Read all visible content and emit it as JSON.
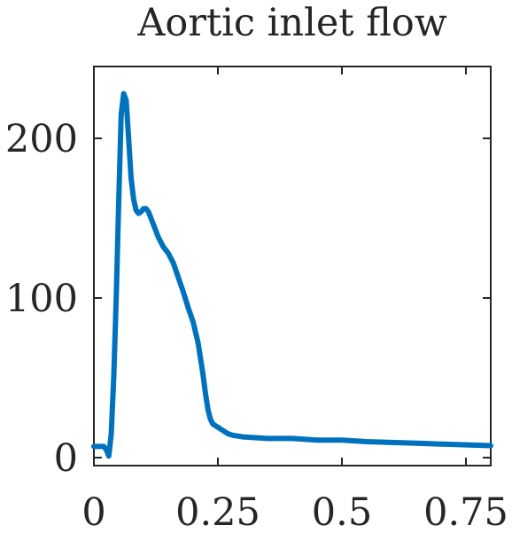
{
  "chart_data": {
    "type": "line",
    "title": "Aortic inlet flow",
    "xlabel": "",
    "ylabel": "",
    "xlim": [
      0,
      0.8
    ],
    "ylim": [
      -5,
      245
    ],
    "xticks": [
      0,
      0.25,
      0.5,
      0.75
    ],
    "xtick_labels": [
      "0",
      "0.25",
      "0.5",
      "0.75"
    ],
    "yticks": [
      0,
      100,
      200
    ],
    "ytick_labels": [
      "0",
      "100",
      "200"
    ],
    "grid": false,
    "series": [
      {
        "name": "",
        "color": "#0072BD",
        "x": [
          0,
          0.02,
          0.025,
          0.03,
          0.035,
          0.04,
          0.045,
          0.05,
          0.055,
          0.06,
          0.065,
          0.07,
          0.075,
          0.08,
          0.085,
          0.09,
          0.095,
          0.1,
          0.105,
          0.11,
          0.115,
          0.12,
          0.13,
          0.14,
          0.15,
          0.16,
          0.17,
          0.18,
          0.19,
          0.2,
          0.21,
          0.22,
          0.225,
          0.23,
          0.235,
          0.24,
          0.245,
          0.25,
          0.26,
          0.27,
          0.28,
          0.3,
          0.35,
          0.4,
          0.45,
          0.5,
          0.55,
          0.6,
          0.65,
          0.7,
          0.75,
          0.8
        ],
        "y": [
          7,
          7,
          5,
          1,
          15,
          50,
          100,
          160,
          215,
          228,
          224,
          200,
          175,
          162,
          155,
          153,
          154,
          156,
          156,
          154,
          150,
          146,
          138,
          132,
          128,
          122,
          113,
          104,
          94,
          85,
          72,
          52,
          40,
          30,
          24,
          21,
          20,
          19,
          17,
          15,
          14,
          13,
          12,
          12,
          11,
          11,
          10,
          9.5,
          9,
          8.5,
          8,
          7.5
        ]
      }
    ]
  }
}
